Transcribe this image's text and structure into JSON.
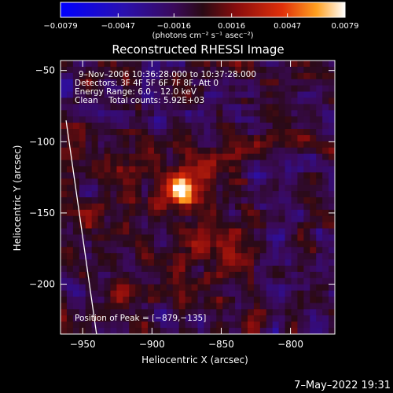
{
  "chart_data": {
    "type": "heatmap",
    "title": "Reconstructed RHESSI Image",
    "xlabel": "Heliocentric X (arcsec)",
    "ylabel": "Heliocentric Y (arcsec)",
    "xlim": [
      -966,
      -768
    ],
    "ylim": [
      -235,
      -43
    ],
    "x_ticks": [
      -950,
      -900,
      -850,
      -800
    ],
    "x_tick_labels": [
      "−950",
      "−900",
      "−850",
      "−800"
    ],
    "y_ticks": [
      -50,
      -100,
      -150,
      -200
    ],
    "y_tick_labels": [
      "−50",
      "−100",
      "−150",
      "−200"
    ],
    "colorbar": {
      "range": [
        -0.0079,
        0.0079
      ],
      "ticks": [
        -0.0079,
        -0.0047,
        -0.0016,
        0.0016,
        0.0047,
        0.0079
      ],
      "tick_labels": [
        "−0.0079",
        "−0.0047",
        "−0.0016",
        "0.0016",
        "0.0047",
        "0.0079"
      ],
      "unit_label": "(photons cm⁻² s⁻¹ asec⁻²)"
    },
    "annotations": {
      "time": "9–Nov–2006 10:36:28.000 to 10:37:28.000",
      "detectors": "Detectors: 3F 4F 5F 6F 7F 8F, Att 0",
      "energy": "Energy Range: 6.0 – 12.0 keV",
      "clean": "Clean    Total counts: 5.92E+03",
      "peak": "Position of Peak = [−879,−135]"
    },
    "peak": {
      "x": -879,
      "y": -135,
      "value": 0.0079
    },
    "limb": {
      "x_top": -962,
      "y_top": -85,
      "x_bottom": -940,
      "y_bottom": -235
    },
    "grid": false,
    "timestamp": "7–May–2022 19:31"
  }
}
